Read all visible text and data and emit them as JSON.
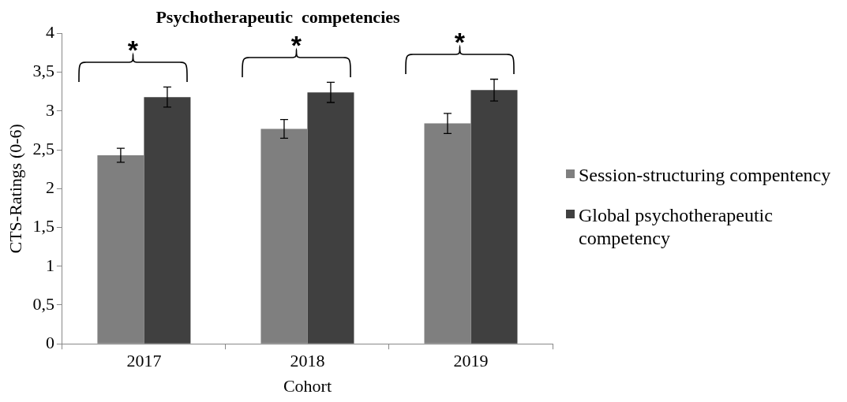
{
  "chart_data": {
    "type": "bar",
    "title": "Psychotherapeutic  competencies",
    "xlabel": "Cohort",
    "ylabel": "CTS-Ratings (0-6)",
    "categories": [
      "2017",
      "2018",
      "2019"
    ],
    "series": [
      {
        "name": "Session-structuring compentency",
        "color": "#7f7f7f",
        "values": [
          2.43,
          2.77,
          2.84
        ],
        "errors": [
          0.09,
          0.12,
          0.13
        ]
      },
      {
        "name": "Global psychotherapeutic competency",
        "color": "#404040",
        "values": [
          3.18,
          3.24,
          3.27
        ],
        "errors": [
          0.13,
          0.13,
          0.14
        ]
      }
    ],
    "ylim": [
      0,
      4
    ],
    "yticks": [
      0,
      {
        "value": 0.5,
        "label": "0,5"
      },
      1,
      {
        "value": 1.5,
        "label": "1,5"
      },
      2,
      {
        "value": 2.5,
        "label": "2,5"
      },
      3,
      {
        "value": 3.5,
        "label": "3,5"
      },
      4
    ],
    "annotations": [
      "*",
      "*",
      "*"
    ],
    "legend": "right"
  }
}
